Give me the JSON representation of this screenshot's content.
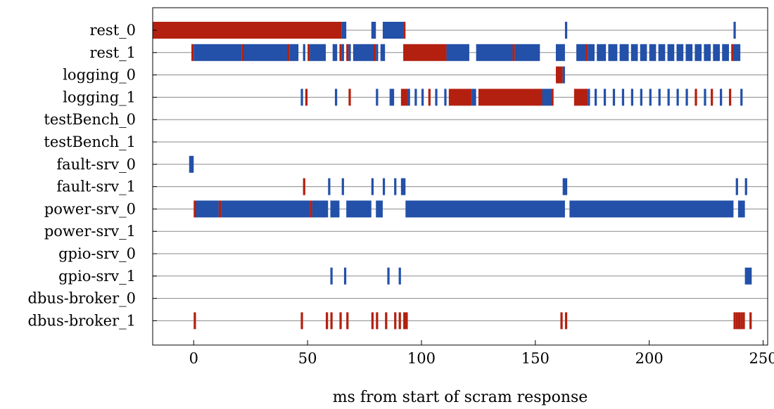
{
  "chart_data": {
    "type": "timeline",
    "title": "",
    "xlabel": "ms from start of scram response",
    "ylabel": "",
    "xlim": [
      -18,
      252
    ],
    "xticks": [
      0,
      50,
      100,
      150,
      200,
      250
    ],
    "grid": "horizontal",
    "colors": {
      "red": "#b3200f",
      "blue": "#2350a8"
    },
    "rows": [
      {
        "label": "rest_0",
        "segments": [
          [
            -18,
            65,
            "red"
          ],
          [
            65,
            67,
            "blue"
          ],
          [
            78,
            80,
            "blue"
          ],
          [
            83,
            92,
            "blue"
          ],
          [
            92,
            93,
            "red"
          ],
          [
            163,
            164,
            "blue"
          ],
          [
            237,
            238,
            "blue"
          ]
        ]
      },
      {
        "label": "rest_1",
        "segments": [
          [
            -1,
            0,
            "red"
          ],
          [
            0,
            21,
            "blue"
          ],
          [
            21,
            22,
            "red"
          ],
          [
            22,
            41,
            "blue"
          ],
          [
            41,
            42,
            "red"
          ],
          [
            42,
            46,
            "blue"
          ],
          [
            48,
            49,
            "blue"
          ],
          [
            50,
            51,
            "red"
          ],
          [
            51,
            58,
            "blue"
          ],
          [
            61,
            63,
            "blue"
          ],
          [
            64,
            65,
            "red"
          ],
          [
            65,
            66,
            "blue"
          ],
          [
            67,
            68,
            "red"
          ],
          [
            68,
            69,
            "blue"
          ],
          [
            70,
            79,
            "blue"
          ],
          [
            79,
            80,
            "red"
          ],
          [
            80,
            81,
            "blue"
          ],
          [
            82,
            84,
            "blue"
          ],
          [
            92,
            111,
            "red"
          ],
          [
            111,
            121,
            "blue"
          ],
          [
            124,
            140,
            "blue"
          ],
          [
            140,
            141,
            "red"
          ],
          [
            141,
            152,
            "blue"
          ],
          [
            159,
            163,
            "blue"
          ],
          [
            168,
            172,
            "blue"
          ],
          [
            172,
            173,
            "red"
          ],
          [
            173,
            176,
            "blue"
          ],
          [
            177,
            181,
            "blue"
          ],
          [
            182,
            186,
            "blue"
          ],
          [
            187,
            191,
            "blue"
          ],
          [
            192,
            195,
            "blue"
          ],
          [
            196,
            199,
            "blue"
          ],
          [
            200,
            203,
            "blue"
          ],
          [
            204,
            207,
            "blue"
          ],
          [
            208,
            211,
            "blue"
          ],
          [
            212,
            215,
            "blue"
          ],
          [
            216,
            219,
            "blue"
          ],
          [
            220,
            223,
            "blue"
          ],
          [
            224,
            227,
            "blue"
          ],
          [
            228,
            231,
            "blue"
          ],
          [
            232,
            235,
            "blue"
          ],
          [
            236,
            237,
            "red"
          ],
          [
            237,
            240,
            "blue"
          ]
        ]
      },
      {
        "label": "logging_0",
        "segments": [
          [
            159,
            162,
            "red"
          ],
          [
            162,
            163,
            "blue"
          ]
        ]
      },
      {
        "label": "logging_1",
        "segments": [
          [
            47,
            48,
            "blue"
          ],
          [
            49,
            50,
            "red"
          ],
          [
            62,
            63,
            "blue"
          ],
          [
            68,
            69,
            "red"
          ],
          [
            80,
            81,
            "blue"
          ],
          [
            86,
            88,
            "blue"
          ],
          [
            91,
            94,
            "red"
          ],
          [
            94,
            95,
            "blue"
          ],
          [
            97,
            98,
            "blue"
          ],
          [
            100,
            101,
            "blue"
          ],
          [
            103,
            104,
            "red"
          ],
          [
            106,
            107,
            "blue"
          ],
          [
            110,
            111,
            "blue"
          ],
          [
            112,
            122,
            "red"
          ],
          [
            122,
            124,
            "blue"
          ],
          [
            125,
            153,
            "red"
          ],
          [
            153,
            157,
            "blue"
          ],
          [
            157,
            158,
            "red"
          ],
          [
            167,
            173,
            "red"
          ],
          [
            173,
            174,
            "blue"
          ],
          [
            176,
            177,
            "blue"
          ],
          [
            180,
            181,
            "blue"
          ],
          [
            184,
            185,
            "blue"
          ],
          [
            188,
            189,
            "blue"
          ],
          [
            192,
            193,
            "blue"
          ],
          [
            196,
            197,
            "blue"
          ],
          [
            200,
            201,
            "blue"
          ],
          [
            204,
            205,
            "blue"
          ],
          [
            208,
            209,
            "blue"
          ],
          [
            212,
            213,
            "blue"
          ],
          [
            216,
            217,
            "blue"
          ],
          [
            220,
            221,
            "red"
          ],
          [
            224,
            225,
            "blue"
          ],
          [
            227,
            228,
            "red"
          ],
          [
            231,
            232,
            "blue"
          ],
          [
            235,
            236,
            "red"
          ],
          [
            240,
            241,
            "blue"
          ]
        ]
      },
      {
        "label": "testBench_0",
        "segments": []
      },
      {
        "label": "testBench_1",
        "segments": []
      },
      {
        "label": "fault-srv_0",
        "segments": [
          [
            -2,
            0,
            "blue"
          ]
        ]
      },
      {
        "label": "fault-srv_1",
        "segments": [
          [
            48,
            49,
            "red"
          ],
          [
            59,
            60,
            "blue"
          ],
          [
            65,
            66,
            "blue"
          ],
          [
            78,
            79,
            "blue"
          ],
          [
            83,
            84,
            "blue"
          ],
          [
            88,
            89,
            "blue"
          ],
          [
            91,
            93,
            "blue"
          ],
          [
            162,
            164,
            "blue"
          ],
          [
            238,
            239,
            "blue"
          ],
          [
            242,
            243,
            "blue"
          ]
        ]
      },
      {
        "label": "power-srv_0",
        "segments": [
          [
            0,
            1,
            "red"
          ],
          [
            1,
            11,
            "blue"
          ],
          [
            11,
            12,
            "red"
          ],
          [
            12,
            51,
            "blue"
          ],
          [
            51,
            52,
            "red"
          ],
          [
            52,
            59,
            "blue"
          ],
          [
            60,
            64,
            "blue"
          ],
          [
            67,
            78,
            "blue"
          ],
          [
            80,
            83,
            "blue"
          ],
          [
            93,
            163,
            "blue"
          ],
          [
            165,
            237,
            "blue"
          ],
          [
            239,
            242,
            "blue"
          ]
        ]
      },
      {
        "label": "power-srv_1",
        "segments": []
      },
      {
        "label": "gpio-srv_0",
        "segments": []
      },
      {
        "label": "gpio-srv_1",
        "segments": [
          [
            60,
            61,
            "blue"
          ],
          [
            66,
            67,
            "blue"
          ],
          [
            85,
            86,
            "blue"
          ],
          [
            90,
            91,
            "blue"
          ],
          [
            242,
            245,
            "blue"
          ]
        ]
      },
      {
        "label": "dbus-broker_0",
        "segments": []
      },
      {
        "label": "dbus-broker_1",
        "segments": [
          [
            0,
            1,
            "red"
          ],
          [
            47,
            48,
            "red"
          ],
          [
            58,
            59,
            "red"
          ],
          [
            60,
            61,
            "red"
          ],
          [
            64,
            65,
            "red"
          ],
          [
            67,
            68,
            "red"
          ],
          [
            78,
            79,
            "red"
          ],
          [
            80,
            81,
            "red"
          ],
          [
            84,
            85,
            "red"
          ],
          [
            88,
            89,
            "red"
          ],
          [
            90,
            91,
            "red"
          ],
          [
            92,
            94,
            "red"
          ],
          [
            161,
            162,
            "red"
          ],
          [
            163,
            164,
            "red"
          ],
          [
            237,
            238,
            "red"
          ],
          [
            238,
            239,
            "red"
          ],
          [
            239,
            240,
            "red"
          ],
          [
            240,
            241,
            "red"
          ],
          [
            241,
            242,
            "red"
          ],
          [
            244,
            245,
            "red"
          ]
        ]
      }
    ]
  }
}
